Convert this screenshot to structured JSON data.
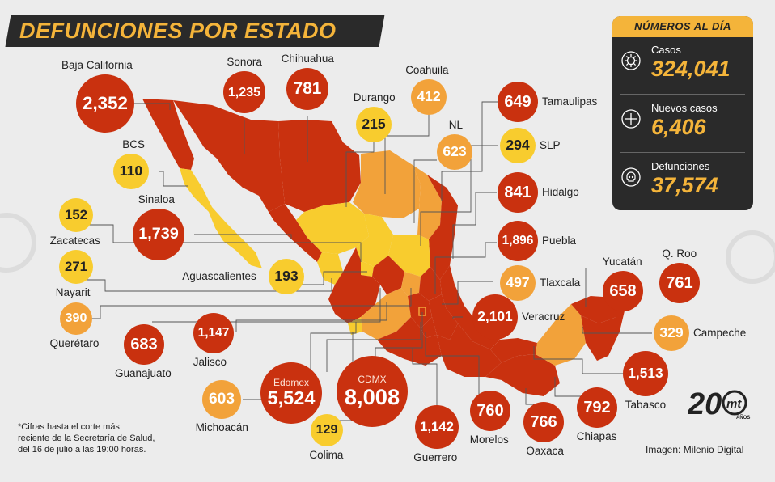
{
  "title": "DEFUNCIONES POR ESTADO",
  "panel": {
    "header": "NÚMEROS AL DÍA",
    "stats": [
      {
        "label": "Casos",
        "value": "324,041",
        "icon": "virus-icon"
      },
      {
        "label": "Nuevos casos",
        "value": "6,406",
        "icon": "plus-icon"
      },
      {
        "label": "Defunciones",
        "value": "37,574",
        "icon": "skull-icon"
      }
    ]
  },
  "states": [
    {
      "name": "Baja California",
      "value": "2,352",
      "level": "high"
    },
    {
      "name": "Sonora",
      "value": "1,235",
      "level": "high"
    },
    {
      "name": "Chihuahua",
      "value": "781",
      "level": "high"
    },
    {
      "name": "Durango",
      "value": "215",
      "level": "low"
    },
    {
      "name": "Coahuila",
      "value": "412",
      "level": "mid"
    },
    {
      "name": "NL",
      "value": "623",
      "level": "mid"
    },
    {
      "name": "Tamaulipas",
      "value": "649",
      "level": "high"
    },
    {
      "name": "SLP",
      "value": "294",
      "level": "low"
    },
    {
      "name": "BCS",
      "value": "110",
      "level": "low"
    },
    {
      "name": "Hidalgo",
      "value": "841",
      "level": "high"
    },
    {
      "name": "Zacatecas",
      "value": "152",
      "level": "low"
    },
    {
      "name": "Sinaloa",
      "value": "1,739",
      "level": "high"
    },
    {
      "name": "Puebla",
      "value": "1,896",
      "level": "high"
    },
    {
      "name": "Nayarit",
      "value": "271",
      "level": "low"
    },
    {
      "name": "Aguascalientes",
      "value": "193",
      "level": "low"
    },
    {
      "name": "Tlaxcala",
      "value": "497",
      "level": "mid"
    },
    {
      "name": "Yucatán",
      "value": "658",
      "level": "high"
    },
    {
      "name": "Q. Roo",
      "value": "761",
      "level": "high"
    },
    {
      "name": "Querétaro",
      "value": "390",
      "level": "mid"
    },
    {
      "name": "Veracruz",
      "value": "2,101",
      "level": "high"
    },
    {
      "name": "Campeche",
      "value": "329",
      "level": "mid"
    },
    {
      "name": "Guanajuato",
      "value": "683",
      "level": "high"
    },
    {
      "name": "Jalisco",
      "value": "1,147",
      "level": "high"
    },
    {
      "name": "Edomex",
      "value": "5,524",
      "level": "high"
    },
    {
      "name": "CDMX",
      "value": "8,008",
      "level": "high"
    },
    {
      "name": "Tabasco",
      "value": "1,513",
      "level": "high"
    },
    {
      "name": "Michoacán",
      "value": "603",
      "level": "mid"
    },
    {
      "name": "Morelos",
      "value": "760",
      "level": "high"
    },
    {
      "name": "Oaxaca",
      "value": "766",
      "level": "high"
    },
    {
      "name": "Chiapas",
      "value": "792",
      "level": "high"
    },
    {
      "name": "Colima",
      "value": "129",
      "level": "low"
    },
    {
      "name": "Guerrero",
      "value": "1,142",
      "level": "high"
    }
  ],
  "colors": {
    "high": "#c9310f",
    "mid": "#f2a23a",
    "low": "#f8cc2e",
    "accent": "#f4b43a",
    "panel": "#2a2a2a"
  },
  "footnote": [
    "*Cifras hasta el corte más",
    "reciente de la Secretaría de Salud,",
    "del 16 de julio a las 19:00 horas."
  ],
  "credit": "Imagen: Milenio Digital",
  "logo": {
    "number": "20",
    "brand": "mt",
    "sub": "AÑOS"
  }
}
